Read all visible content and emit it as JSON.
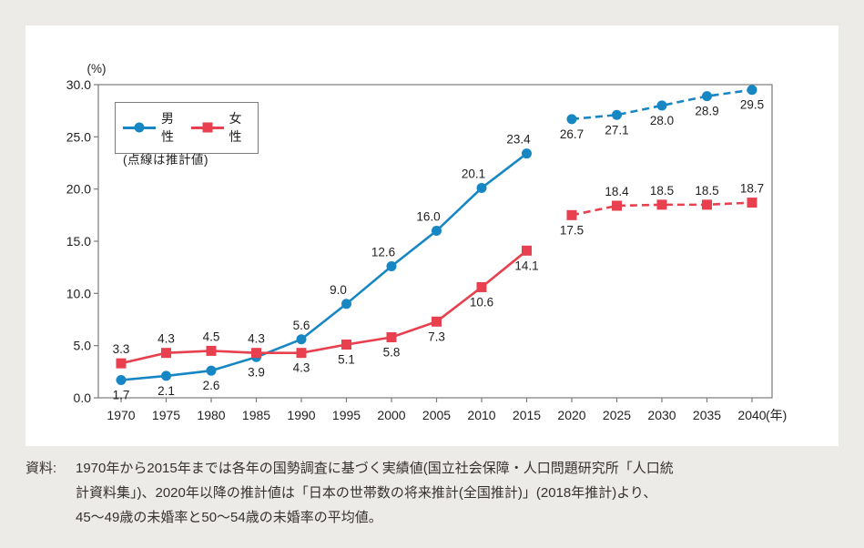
{
  "page": {
    "background": "#edebe8",
    "card_background": "#ffffff"
  },
  "chart": {
    "legend": {
      "male_label": "男性",
      "female_label": "女性",
      "note": "(点線は推計値)"
    },
    "colors": {
      "male": "#1787c4",
      "female": "#e8404e",
      "axis": "#7c7c7c",
      "text": "#1f1f1f"
    }
  },
  "chart_data": {
    "type": "line",
    "title": "",
    "x": [
      1970,
      1975,
      1980,
      1985,
      1990,
      1995,
      2000,
      2005,
      2010,
      2015,
      2020,
      2025,
      2030,
      2035,
      2040
    ],
    "x_axis_unit": "(年)",
    "y_axis_unit": "(%)",
    "y_ticks": [
      0,
      5,
      10,
      15,
      20,
      25,
      30
    ],
    "ylim": [
      0,
      30
    ],
    "grid": false,
    "legend_position": "top-left-inside",
    "projection_note": "点線は推計値 (dashed lines are projected values from 2020 onward)",
    "series": [
      {
        "name": "男性",
        "color": "#1787c4",
        "marker": "circle",
        "solid_points": 10,
        "values": [
          1.7,
          2.1,
          2.6,
          3.9,
          5.6,
          9.0,
          12.6,
          16.0,
          20.1,
          23.4,
          26.7,
          27.1,
          28.0,
          28.9,
          29.5
        ],
        "label_side": [
          "below",
          "below",
          "below",
          "below",
          "above",
          "above-left",
          "above-left",
          "above-left",
          "above-left",
          "above-left",
          "below",
          "below",
          "below",
          "below",
          "below"
        ]
      },
      {
        "name": "女性",
        "color": "#e8404e",
        "marker": "square",
        "solid_points": 10,
        "values": [
          3.3,
          4.3,
          4.5,
          4.3,
          4.3,
          5.1,
          5.8,
          7.3,
          10.6,
          14.1,
          17.5,
          18.4,
          18.5,
          18.5,
          18.7
        ],
        "label_side": [
          "above",
          "above",
          "above",
          "above",
          "below",
          "below",
          "below",
          "below",
          "below",
          "below",
          "below",
          "above",
          "above",
          "above",
          "above"
        ]
      }
    ]
  },
  "footer": {
    "label": "資料:",
    "lines": [
      "1970年から2015年までは各年の国勢調査に基づく実績値(国立社会保障・人口問題研究所「人口統",
      "計資料集」)、2020年以降の推計値は「日本の世帯数の将来推計(全国推計)」(2018年推計)より、",
      "45〜49歳の未婚率と50〜54歳の未婚率の平均値。"
    ]
  }
}
